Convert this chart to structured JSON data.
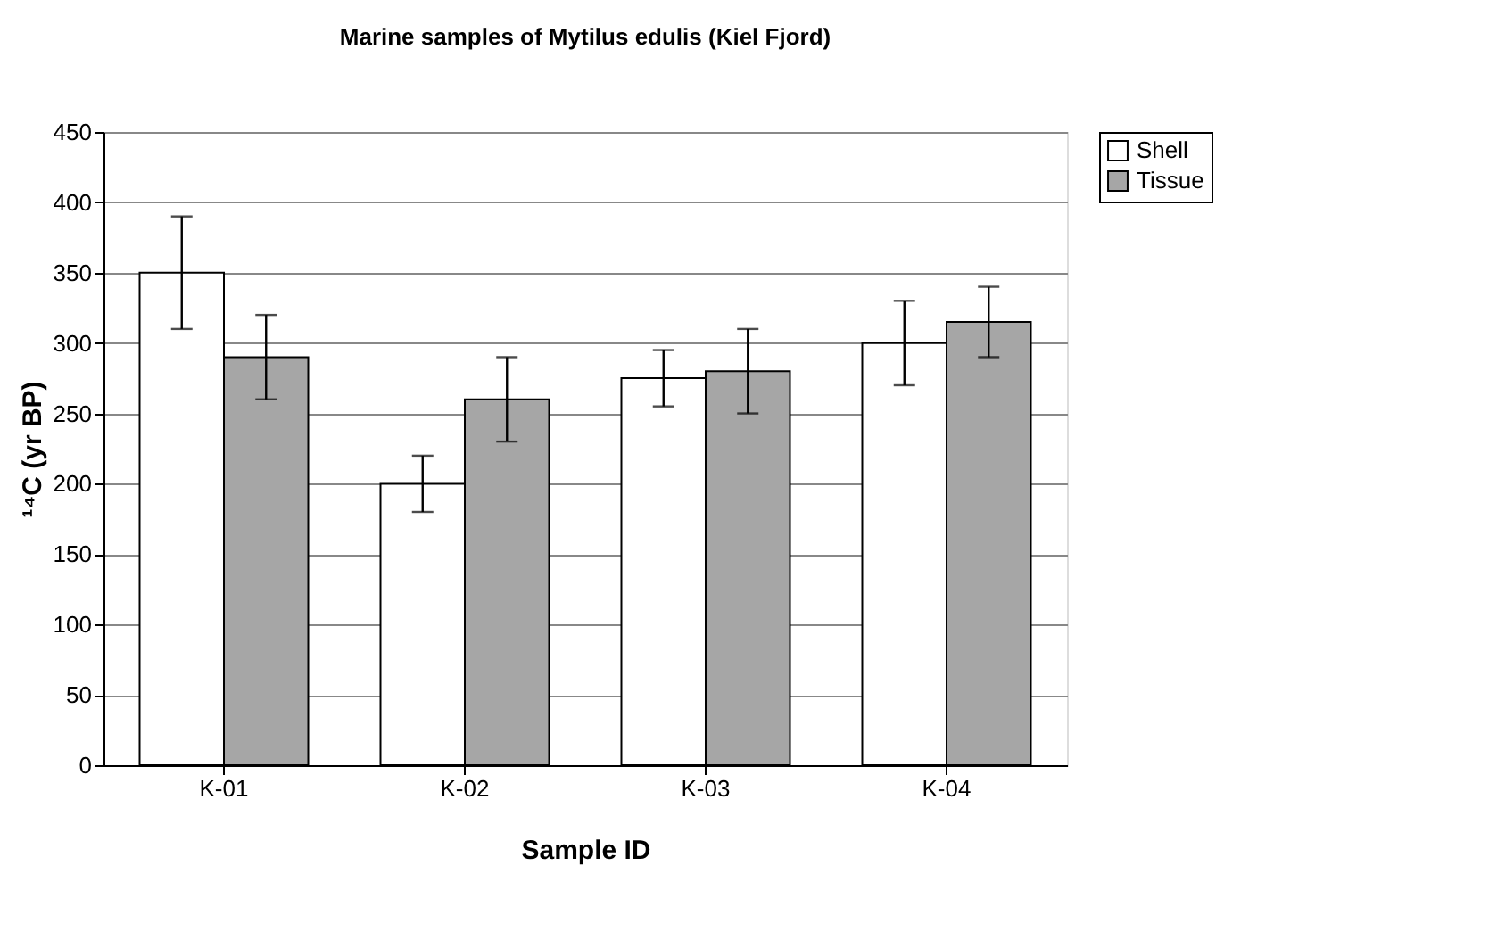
{
  "chart_data": {
    "type": "bar",
    "title": "Marine samples of Mytilus edulis (Kiel Fjord)",
    "xlabel": "Sample ID",
    "ylabel": "¹⁴C (yr BP)",
    "categories": [
      "K-01",
      "K-02",
      "K-03",
      "K-04"
    ],
    "series": [
      {
        "name": "Shell",
        "color": "#ffffff",
        "values": [
          350,
          200,
          275,
          300
        ],
        "errors": [
          [
            310,
            390
          ],
          [
            180,
            220
          ],
          [
            255,
            295
          ],
          [
            270,
            330
          ]
        ]
      },
      {
        "name": "Tissue",
        "color": "#a6a6a6",
        "values": [
          290,
          260,
          280,
          315
        ],
        "errors": [
          [
            260,
            320
          ],
          [
            230,
            290
          ],
          [
            250,
            310
          ],
          [
            290,
            340
          ]
        ]
      }
    ],
    "ylim": [
      0,
      450
    ],
    "yticks": [
      0,
      50,
      100,
      150,
      200,
      250,
      300,
      350,
      400,
      450
    ],
    "grid": "y",
    "legend": "right"
  }
}
